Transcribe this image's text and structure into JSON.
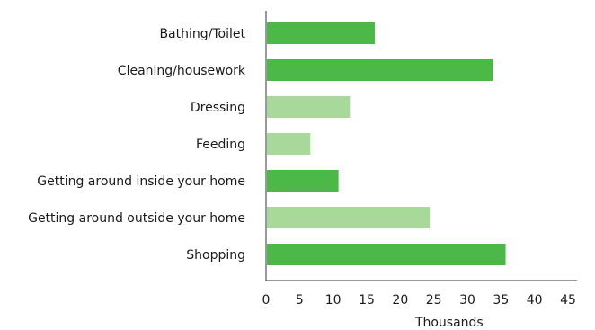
{
  "chart_data": {
    "type": "bar",
    "orientation": "horizontal",
    "title": "",
    "xlabel": "Thousands",
    "ylabel": "",
    "xlim": [
      0,
      45
    ],
    "xticks": [
      0,
      5,
      10,
      15,
      20,
      25,
      30,
      35,
      40,
      45
    ],
    "grid": false,
    "categories": [
      "Bathing/Toilet",
      "Cleaning/housework",
      "Dressing",
      "Feeding",
      "Getting around inside your home",
      "Getting around outside your home",
      "Shopping"
    ],
    "values": [
      16.2,
      33.8,
      12.5,
      6.6,
      10.8,
      24.4,
      35.7
    ],
    "bar_colors": [
      "#4cb848",
      "#4cb848",
      "#a8d89a",
      "#a8d89a",
      "#4cb848",
      "#a8d89a",
      "#4cb848"
    ]
  },
  "colors": {
    "axis": "#333333",
    "text": "#1a1a1a"
  }
}
